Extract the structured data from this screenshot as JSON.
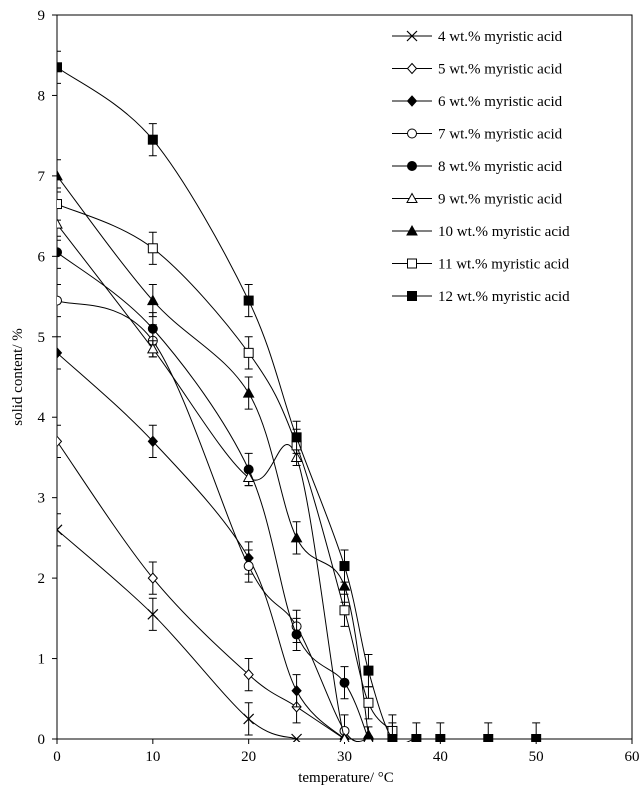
{
  "chart_data": {
    "type": "scatter",
    "title": "",
    "xlabel": "temperature/ °C",
    "ylabel": "solid content/ %",
    "xlim": [
      0,
      60
    ],
    "ylim": [
      0,
      9
    ],
    "xticks": [
      "0",
      "10",
      "20",
      "30",
      "40",
      "50",
      "60"
    ],
    "yticks": [
      "0",
      "1",
      "2",
      "3",
      "4",
      "5",
      "6",
      "7",
      "8",
      "9"
    ],
    "grid": false,
    "legend_position": "top-right",
    "series": [
      {
        "name": "4 wt.% myristic acid",
        "marker": "x",
        "x": [
          0,
          10,
          20,
          25
        ],
        "y": [
          2.6,
          1.55,
          0.25,
          0.0
        ],
        "err": [
          0.2,
          0.2,
          0.2,
          0
        ]
      },
      {
        "name": "5 wt.% myristic acid",
        "marker": "diamond-open",
        "x": [
          0,
          10,
          20,
          25,
          30
        ],
        "y": [
          3.7,
          2.0,
          0.8,
          0.4,
          0.0
        ],
        "err": [
          0.2,
          0.2,
          0.2,
          0.2,
          0
        ]
      },
      {
        "name": "6 wt.% myristic acid",
        "marker": "diamond-filled",
        "x": [
          0,
          10,
          20,
          25,
          30
        ],
        "y": [
          4.8,
          3.7,
          2.25,
          0.6,
          0.0
        ],
        "err": [
          0.2,
          0.2,
          0.2,
          0.2,
          0
        ]
      },
      {
        "name": "7 wt.% myristic acid",
        "marker": "circle-open",
        "x": [
          0,
          10,
          20,
          25,
          30,
          32.5
        ],
        "y": [
          5.45,
          4.95,
          2.15,
          1.4,
          0.1,
          0.0
        ],
        "err": [
          0.2,
          0.2,
          0.2,
          0.2,
          0.2,
          0
        ]
      },
      {
        "name": "8 wt.% myristic acid",
        "marker": "circle-filled",
        "x": [
          0,
          10,
          20,
          25,
          30,
          32.5
        ],
        "y": [
          6.05,
          5.1,
          3.35,
          1.3,
          0.7,
          0.0
        ],
        "err": [
          0.2,
          0.2,
          0.2,
          0.2,
          0.2,
          0
        ]
      },
      {
        "name": "9 wt.% myristic acid",
        "marker": "triangle-open",
        "x": [
          0,
          10,
          20,
          25,
          30,
          32.5
        ],
        "y": [
          6.4,
          4.85,
          3.25,
          3.5,
          0.0,
          0.0
        ],
        "err": [
          0.2,
          0.1,
          0.1,
          0.1,
          0,
          0
        ]
      },
      {
        "name": "10 wt.% myristic acid",
        "marker": "triangle-filled",
        "x": [
          0,
          10,
          20,
          25,
          30,
          32.5
        ],
        "y": [
          7.0,
          5.45,
          4.3,
          2.5,
          1.9,
          0.05
        ],
        "err": [
          0.2,
          0.2,
          0.2,
          0.2,
          0.2,
          0.1
        ]
      },
      {
        "name": "11 wt.% myristic acid",
        "marker": "square-open",
        "x": [
          0,
          10,
          20,
          25,
          30,
          32.5,
          35
        ],
        "y": [
          6.65,
          6.1,
          4.8,
          3.65,
          1.6,
          0.45,
          0.1
        ],
        "err": [
          0.2,
          0.2,
          0.2,
          0.2,
          0.2,
          0.2,
          0.2
        ]
      },
      {
        "name": "12 wt.% myristic acid",
        "marker": "square-filled",
        "x": [
          0,
          10,
          20,
          25,
          30,
          32.5,
          35,
          37.5,
          40,
          45,
          50
        ],
        "y": [
          8.35,
          7.45,
          5.45,
          3.75,
          2.15,
          0.85,
          0.0,
          0.0,
          0.0,
          0.0,
          0.0
        ],
        "err": [
          0.2,
          0.2,
          0.2,
          0.2,
          0.2,
          0.2,
          0.2,
          0.2,
          0.2,
          0.2,
          0.2
        ]
      }
    ]
  }
}
